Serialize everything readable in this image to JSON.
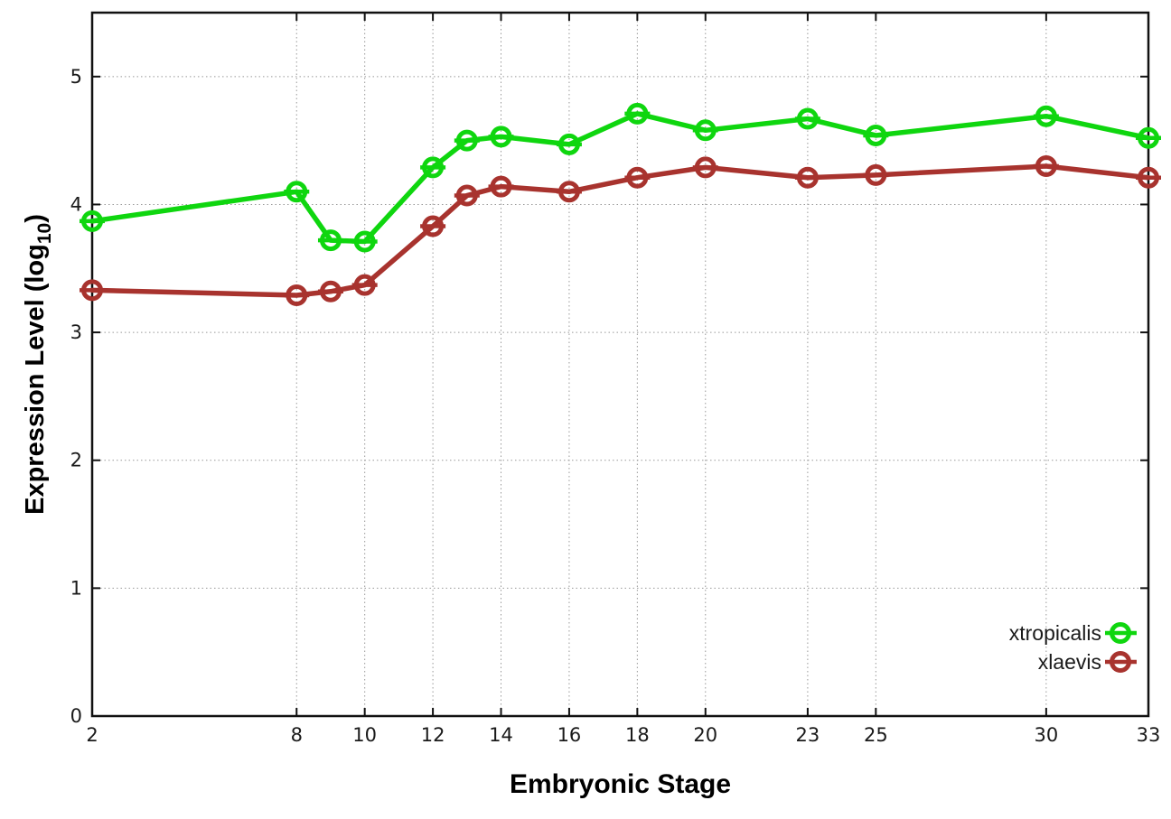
{
  "chart_data": {
    "type": "line",
    "title": "",
    "xlabel": "Embryonic Stage",
    "ylabel": "Expression Level (log10)",
    "ylabel_parts": [
      "Expression Level (log",
      "10",
      ")"
    ],
    "x": [
      2,
      8,
      9,
      10,
      12,
      13,
      14,
      16,
      18,
      20,
      23,
      25,
      30,
      33
    ],
    "series": [
      {
        "name": "xtropicalis",
        "color": "#0fd60f",
        "values": [
          3.87,
          4.1,
          3.72,
          3.71,
          4.29,
          4.5,
          4.53,
          4.47,
          4.71,
          4.58,
          4.67,
          4.54,
          4.69,
          4.52
        ]
      },
      {
        "name": "xlaevis",
        "color": "#a8332e",
        "values": [
          3.33,
          3.29,
          3.32,
          3.37,
          3.83,
          4.07,
          4.14,
          4.1,
          4.21,
          4.29,
          4.21,
          4.23,
          4.3,
          4.21
        ]
      }
    ],
    "xticks": [
      2,
      8,
      10,
      12,
      14,
      16,
      18,
      20,
      23,
      25,
      30,
      33
    ],
    "yticks": [
      0,
      1,
      2,
      3,
      4,
      5
    ],
    "xlim": [
      2,
      33
    ],
    "ylim": [
      0,
      5.5
    ],
    "grid": true,
    "grid_style": "dotted",
    "grid_color": "#999999",
    "axis_color": "#111111",
    "tick_label_color": "#1a1a1a",
    "background": "#ffffff",
    "marker": "open-circle",
    "legend_position": "inside-bottom-right"
  }
}
